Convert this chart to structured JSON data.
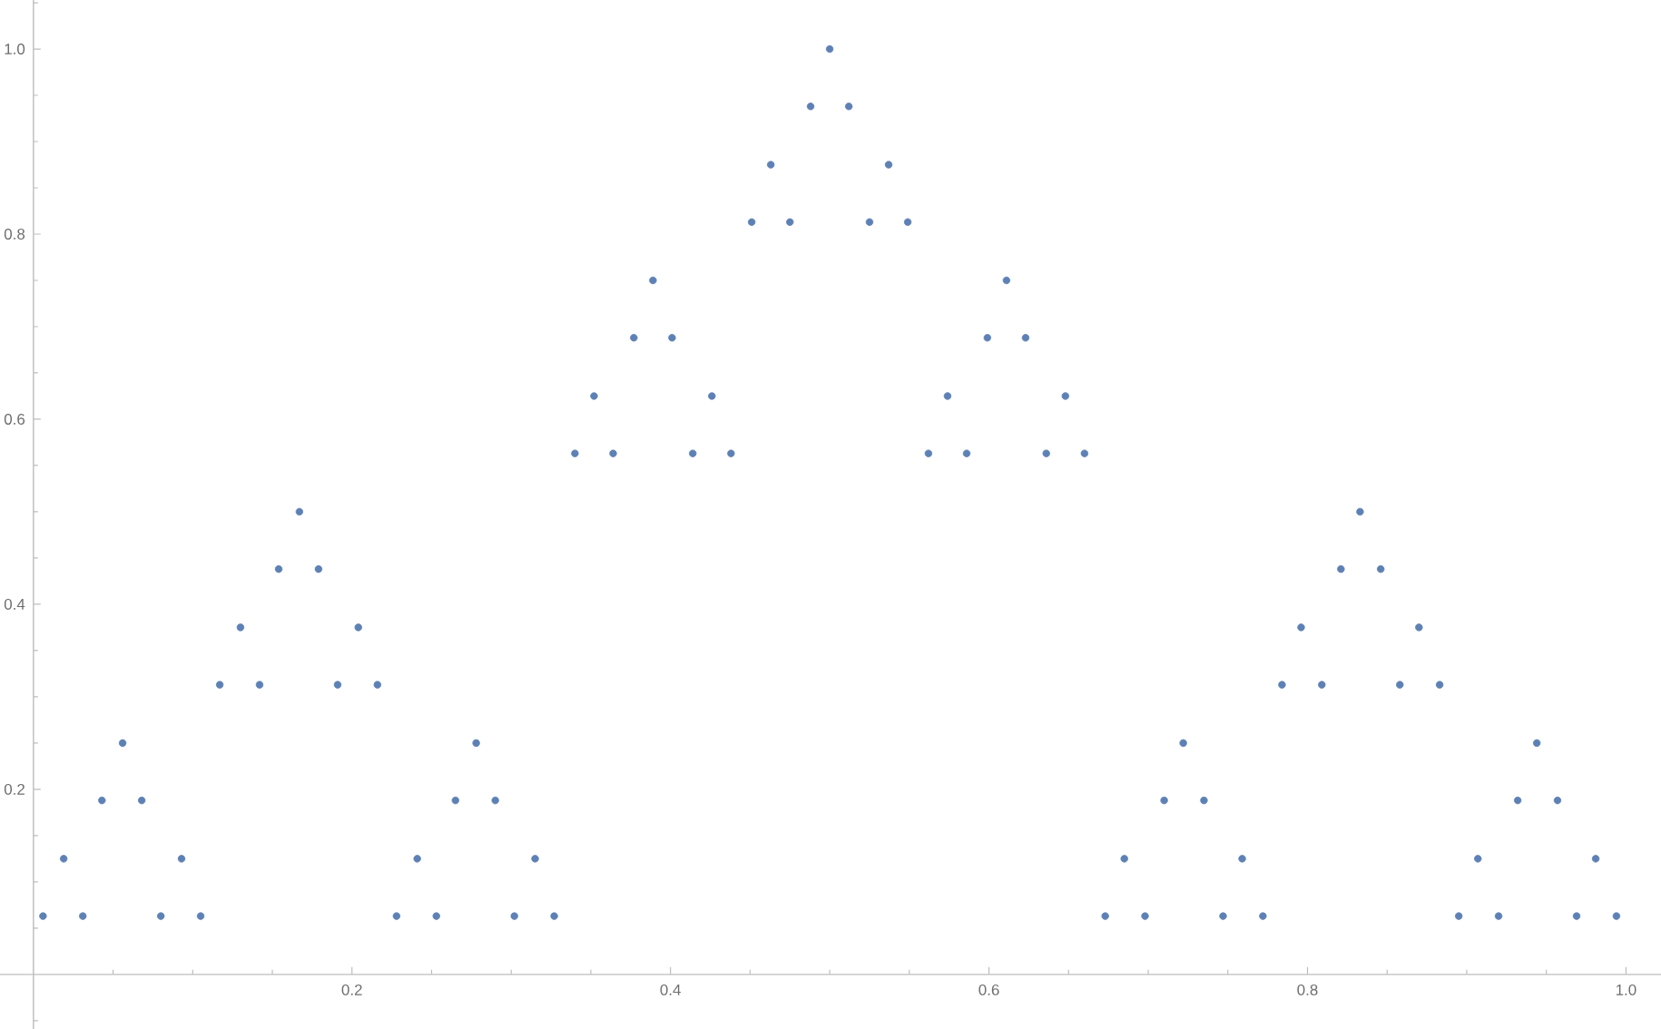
{
  "chart_data": {
    "type": "scatter",
    "x": [
      0.006,
      0.019,
      0.031,
      0.043,
      0.056,
      0.068,
      0.08,
      0.093,
      0.105,
      0.117,
      0.13,
      0.142,
      0.154,
      0.167,
      0.179,
      0.191,
      0.204,
      0.216,
      0.228,
      0.241,
      0.253,
      0.265,
      0.278,
      0.29,
      0.302,
      0.315,
      0.327,
      0.34,
      0.352,
      0.364,
      0.377,
      0.389,
      0.401,
      0.414,
      0.426,
      0.438,
      0.451,
      0.463,
      0.475,
      0.488,
      0.5,
      0.512,
      0.525,
      0.537,
      0.549,
      0.562,
      0.574,
      0.586,
      0.599,
      0.611,
      0.623,
      0.636,
      0.648,
      0.66,
      0.673,
      0.685,
      0.698,
      0.71,
      0.722,
      0.735,
      0.747,
      0.759,
      0.772,
      0.784,
      0.796,
      0.809,
      0.821,
      0.833,
      0.846,
      0.858,
      0.87,
      0.883,
      0.895,
      0.907,
      0.92,
      0.932,
      0.944,
      0.957,
      0.969,
      0.981,
      0.994
    ],
    "values": [
      0.063,
      0.125,
      0.063,
      0.188,
      0.25,
      0.188,
      0.063,
      0.125,
      0.063,
      0.313,
      0.375,
      0.313,
      0.438,
      0.5,
      0.438,
      0.313,
      0.375,
      0.313,
      0.063,
      0.125,
      0.063,
      0.188,
      0.25,
      0.188,
      0.063,
      0.125,
      0.063,
      0.563,
      0.625,
      0.563,
      0.688,
      0.75,
      0.688,
      0.563,
      0.625,
      0.563,
      0.813,
      0.875,
      0.813,
      0.938,
      1.0,
      0.938,
      0.813,
      0.875,
      0.813,
      0.563,
      0.625,
      0.563,
      0.688,
      0.75,
      0.688,
      0.563,
      0.625,
      0.563,
      0.063,
      0.125,
      0.063,
      0.188,
      0.25,
      0.188,
      0.063,
      0.125,
      0.063,
      0.313,
      0.375,
      0.313,
      0.438,
      0.5,
      0.438,
      0.313,
      0.375,
      0.313,
      0.063,
      0.125,
      0.063,
      0.188,
      0.25,
      0.188,
      0.063,
      0.125,
      0.063
    ],
    "color": "#5e81b5",
    "marker": "circle",
    "xlim": [
      -0.021,
      1.022
    ],
    "ylim": [
      -0.059,
      1.053
    ],
    "xticks": [
      {
        "value": 0.05,
        "label": null
      },
      {
        "value": 0.1,
        "label": null
      },
      {
        "value": 0.15,
        "label": null
      },
      0.2,
      {
        "value": 0.25,
        "label": null
      },
      {
        "value": 0.3,
        "label": null
      },
      {
        "value": 0.35,
        "label": null
      },
      0.4,
      {
        "value": 0.45,
        "label": null
      },
      {
        "value": 0.5,
        "label": null
      },
      {
        "value": 0.55,
        "label": null
      },
      0.6,
      {
        "value": 0.65,
        "label": null
      },
      {
        "value": 0.7,
        "label": null
      },
      {
        "value": 0.75,
        "label": null
      },
      0.8,
      {
        "value": 0.85,
        "label": null
      },
      {
        "value": 0.9,
        "label": null
      },
      {
        "value": 0.95,
        "label": null
      },
      {
        "value": 1.0,
        "label": "1.0"
      }
    ],
    "yticks": [
      {
        "value": -0.05,
        "label": null
      },
      {
        "value": 0.05,
        "label": null
      },
      {
        "value": 0.1,
        "label": null
      },
      {
        "value": 0.15,
        "label": null
      },
      0.2,
      {
        "value": 0.25,
        "label": null
      },
      {
        "value": 0.3,
        "label": null
      },
      {
        "value": 0.35,
        "label": null
      },
      0.4,
      {
        "value": 0.45,
        "label": null
      },
      {
        "value": 0.5,
        "label": null
      },
      {
        "value": 0.55,
        "label": null
      },
      0.6,
      {
        "value": 0.65,
        "label": null
      },
      {
        "value": 0.7,
        "label": null
      },
      {
        "value": 0.75,
        "label": null
      },
      0.8,
      {
        "value": 0.85,
        "label": null
      },
      {
        "value": 0.9,
        "label": null
      },
      {
        "value": 0.95,
        "label": null
      },
      {
        "value": 1.0,
        "label": "1.0"
      },
      {
        "value": 1.05,
        "label": null
      }
    ]
  }
}
